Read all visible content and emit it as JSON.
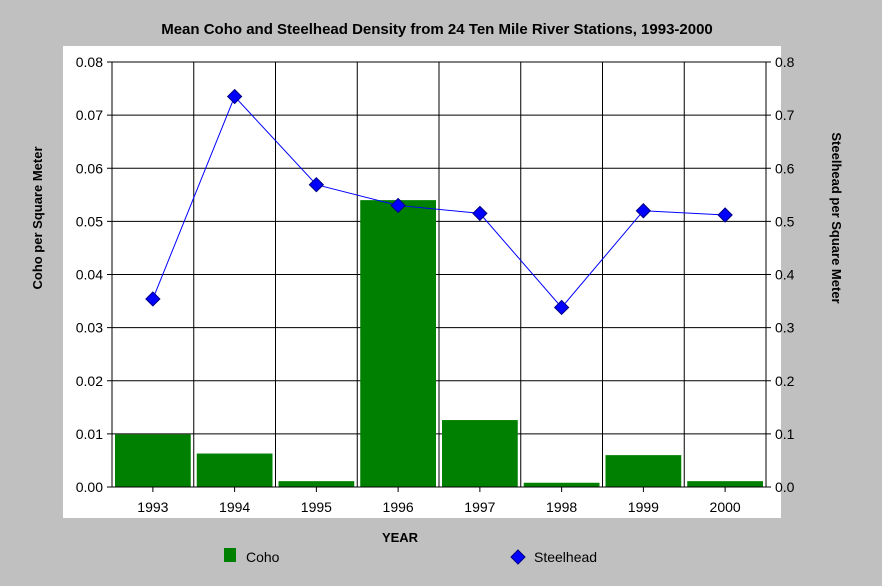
{
  "chart_data": {
    "type": "bar+line",
    "title": "Mean Coho and Steelhead Density from 24 Ten Mile River Stations, 1993-2000",
    "xlabel": "YEAR",
    "ylabel_left": "Coho per Square Meter",
    "ylabel_right": "Steelhead per Square Meter",
    "categories": [
      "1993",
      "1994",
      "1995",
      "1996",
      "1997",
      "1998",
      "1999",
      "2000"
    ],
    "ylim_left": [
      0,
      0.08
    ],
    "ylim_right": [
      0,
      0.8
    ],
    "yticks_left": [
      "0.00",
      "0.01",
      "0.02",
      "0.03",
      "0.04",
      "0.05",
      "0.06",
      "0.07",
      "0.08"
    ],
    "yticks_right": [
      "0.0",
      "0.1",
      "0.2",
      "0.3",
      "0.4",
      "0.5",
      "0.6",
      "0.7",
      "0.8"
    ],
    "grid": true,
    "legend_position": "bottom",
    "series": [
      {
        "name": "Coho",
        "type": "bar",
        "axis": "left",
        "color": "#008000",
        "values": [
          0.0099,
          0.0063,
          0.0011,
          0.054,
          0.0126,
          0.0008,
          0.006,
          0.0011
        ]
      },
      {
        "name": "Steelhead",
        "type": "line",
        "axis": "right",
        "color": "#0000ff",
        "marker": "diamond",
        "values": [
          0.354,
          0.735,
          0.569,
          0.53,
          0.515,
          0.338,
          0.52,
          0.512
        ]
      }
    ]
  }
}
